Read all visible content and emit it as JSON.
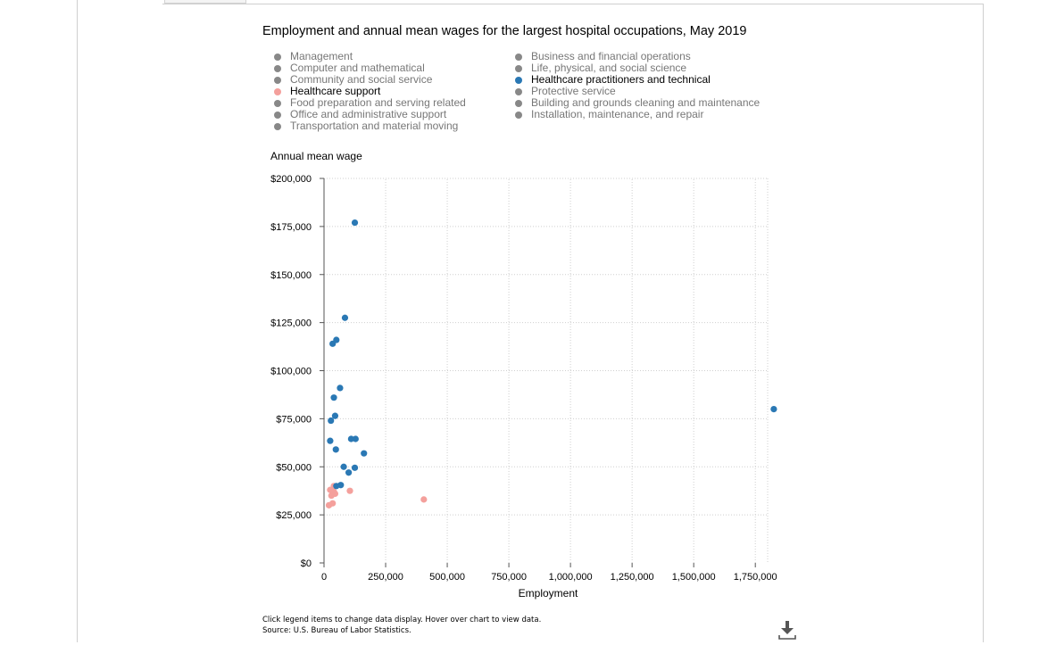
{
  "chart_data": {
    "type": "scatter",
    "title": "Employment and annual mean wages for the largest hospital occupations, May 2019",
    "xlabel": "Employment",
    "ylabel": "Annual mean wage",
    "xlim": [
      0,
      1800000
    ],
    "ylim": [
      0,
      200000
    ],
    "x_ticks": [
      0,
      250000,
      500000,
      750000,
      1000000,
      1250000,
      1500000,
      1750000
    ],
    "x_tick_labels": [
      "0",
      "250,000",
      "500,000",
      "750,000",
      "1,000,000",
      "1,250,000",
      "1,500,000",
      "1,750,000"
    ],
    "y_ticks": [
      0,
      25000,
      50000,
      75000,
      100000,
      125000,
      150000,
      175000,
      200000
    ],
    "y_tick_labels": [
      "$0",
      "$25,000",
      "$50,000",
      "$75,000",
      "$100,000",
      "$125,000",
      "$150,000",
      "$175,000",
      "$200,000"
    ],
    "grid": true,
    "legend": {
      "placement": "top",
      "columns": [
        [
          {
            "label": "Management",
            "color": "#888888",
            "active": false
          },
          {
            "label": "Computer and mathematical",
            "color": "#888888",
            "active": false
          },
          {
            "label": "Community and social service",
            "color": "#888888",
            "active": false
          },
          {
            "label": "Healthcare support",
            "color": "#f4a09c",
            "active": true
          },
          {
            "label": "Food preparation and serving related",
            "color": "#888888",
            "active": false
          },
          {
            "label": "Office and administrative support",
            "color": "#888888",
            "active": false
          },
          {
            "label": "Transportation and material moving",
            "color": "#888888",
            "active": false
          }
        ],
        [
          {
            "label": "Business and financial operations",
            "color": "#888888",
            "active": false
          },
          {
            "label": "Life, physical, and social science",
            "color": "#888888",
            "active": false
          },
          {
            "label": "Healthcare practitioners and technical",
            "color": "#2a78b4",
            "active": true
          },
          {
            "label": "Protective service",
            "color": "#888888",
            "active": false
          },
          {
            "label": "Building and grounds cleaning and maintenance",
            "color": "#888888",
            "active": false
          },
          {
            "label": "Installation, maintenance, and repair",
            "color": "#888888",
            "active": false
          }
        ]
      ]
    },
    "series": [
      {
        "name": "Healthcare support",
        "color": "#f4a09c",
        "points": [
          [
            20000,
            30000
          ],
          [
            30000,
            35000
          ],
          [
            25000,
            38000
          ],
          [
            35000,
            31000
          ],
          [
            40000,
            37000
          ],
          [
            45000,
            36000
          ],
          [
            40000,
            40000
          ],
          [
            105000,
            37500
          ],
          [
            405000,
            33000
          ]
        ]
      },
      {
        "name": "Healthcare practitioners and technical",
        "color": "#2a78b4",
        "points": [
          [
            125000,
            177000
          ],
          [
            85000,
            127500
          ],
          [
            50000,
            116000
          ],
          [
            35000,
            114000
          ],
          [
            65000,
            91000
          ],
          [
            40000,
            86000
          ],
          [
            45000,
            76500
          ],
          [
            28000,
            74000
          ],
          [
            1825000,
            80000
          ],
          [
            25000,
            63500
          ],
          [
            110000,
            64500
          ],
          [
            128000,
            64500
          ],
          [
            48000,
            59000
          ],
          [
            162000,
            57000
          ],
          [
            80000,
            50000
          ],
          [
            125000,
            49500
          ],
          [
            100000,
            47000
          ],
          [
            68000,
            40500
          ],
          [
            50000,
            40000
          ]
        ]
      }
    ]
  },
  "footer": {
    "note_line1": "Click legend items to change data display. Hover over chart to view data.",
    "note_line2": "Source: U.S. Bureau of Labor Statistics."
  },
  "icons": {
    "download": "download-icon"
  }
}
